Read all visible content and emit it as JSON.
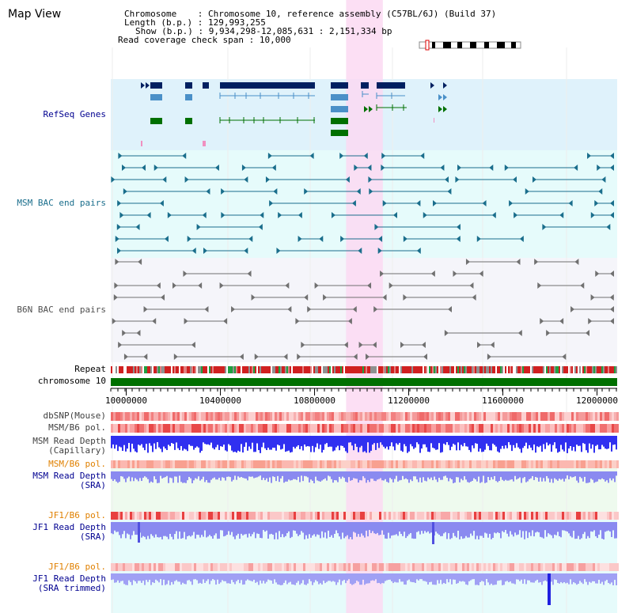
{
  "window": {
    "title": "Map View"
  },
  "info": {
    "chromosome_key": "Chromosome",
    "chromosome_val": "Chromosome 10, reference assembly (C57BL/6J) (Build 37)",
    "length_key": "Length (b.p.)",
    "length_val": "129,993,255",
    "show_key": "Show (b.p.)",
    "show_val": "9,934,298-12,085,631 : 2,151,334 bp",
    "span_key": "Read coverage check span",
    "span_val": "10,000",
    "separator": ":"
  },
  "tracks": {
    "refseq": "RefSeq Genes",
    "msm_bac": "MSM BAC end pairs",
    "b6n_bac": "B6N BAC end pairs",
    "repeat": "Repeat",
    "chromosome": "chromosome 10",
    "dbsnp": "dbSNP(Mouse)",
    "msm_b6_pol_1": "MSM/B6 pol.",
    "msm_depth_cap_1": "MSM Read Depth",
    "msm_depth_cap_2": "(Capillary)",
    "msm_b6_pol_2": "MSM/B6 pol.",
    "msm_depth_sra_1": "MSM Read Depth",
    "msm_depth_sra_2": "(SRA)",
    "jf1_b6_pol_1": "JF1/B6 pol.",
    "jf1_depth_sra_1": "JF1 Read Depth",
    "jf1_depth_sra_2": "(SRA)",
    "jf1_b6_pol_2": "JF1/B6 pol.",
    "jf1_depth_trim_1": "JF1 Read Depth",
    "jf1_depth_trim_2": "(SRA trimmed)"
  },
  "axis": {
    "range_bp": [
      9934298,
      12085631
    ],
    "highlight_bp": [
      10934000,
      11090000
    ],
    "ticks": [
      "10000000",
      "10400000",
      "10800000",
      "11200000",
      "11600000",
      "12000000"
    ]
  },
  "colors": {
    "refseq_bg": "#dff2fb",
    "msm_bac_bg": "#e6fbfb",
    "b6n_bac_bg": "#f5f5fa",
    "highlight": "#fbd9f2",
    "gene_dark": "#002060",
    "gene_light": "#4a90c8",
    "gene_green": "#007000",
    "msm_pair": "#1a6e8c",
    "b6n_pair": "#707070",
    "chromosome_bar": "#007000",
    "label_blue": "#000090",
    "label_gray": "#404040",
    "label_orange": "#e08000",
    "depth_blue": "#3030f0",
    "depth_light": "#8a8af0"
  }
}
